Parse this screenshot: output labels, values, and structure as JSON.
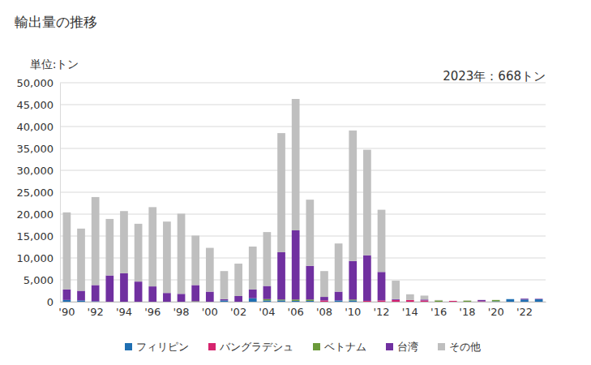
{
  "chart_data": {
    "type": "bar",
    "stacked": true,
    "title": "輸出量の推移",
    "y_label": "単位:トン",
    "annotation": "2023年：668トン",
    "categories": [
      "'90",
      null,
      "'92",
      null,
      "'94",
      null,
      "'96",
      null,
      "'98",
      null,
      "'00",
      null,
      "'02",
      null,
      "'04",
      null,
      "'06",
      null,
      "'08",
      null,
      "'10",
      null,
      "'12",
      null,
      "'14",
      null,
      "'16",
      null,
      "'18",
      null,
      "'20",
      null,
      "'22",
      null
    ],
    "series": [
      {
        "name": "フィリピン",
        "color": "#1f6fb2",
        "values": [
          400,
          300,
          100,
          0,
          0,
          0,
          0,
          0,
          0,
          0,
          0,
          300,
          0,
          800,
          300,
          300,
          200,
          200,
          0,
          300,
          300,
          0,
          0,
          0,
          0,
          0,
          0,
          0,
          0,
          0,
          100,
          600,
          500,
          550
        ]
      },
      {
        "name": "バングラデシュ",
        "color": "#d6246e",
        "values": [
          0,
          0,
          0,
          0,
          0,
          0,
          0,
          0,
          0,
          0,
          0,
          0,
          0,
          0,
          0,
          0,
          0,
          0,
          300,
          0,
          0,
          200,
          300,
          400,
          400,
          300,
          0,
          200,
          0,
          100,
          0,
          0,
          0,
          0
        ]
      },
      {
        "name": "ベトナム",
        "color": "#6b9a3a",
        "values": [
          0,
          0,
          0,
          0,
          0,
          0,
          0,
          0,
          0,
          100,
          0,
          0,
          0,
          0,
          300,
          200,
          300,
          300,
          0,
          0,
          200,
          0,
          0,
          0,
          0,
          0,
          300,
          0,
          250,
          0,
          300,
          0,
          0,
          0
        ]
      },
      {
        "name": "台湾",
        "color": "#7030a0",
        "values": [
          2400,
          2200,
          3700,
          6000,
          6500,
          4600,
          3500,
          2000,
          1800,
          3700,
          2300,
          300,
          1300,
          2000,
          3000,
          10800,
          15800,
          7700,
          800,
          2000,
          8800,
          10400,
          6500,
          200,
          0,
          200,
          0,
          0,
          0,
          300,
          0,
          0,
          200,
          118
        ]
      },
      {
        "name": "その他",
        "color": "#bfbfbf",
        "values": [
          17600,
          14200,
          20100,
          12900,
          14200,
          13200,
          18100,
          16300,
          18300,
          11300,
          10000,
          6400,
          7400,
          9800,
          12300,
          27200,
          30000,
          15100,
          5900,
          11000,
          29800,
          24100,
          14200,
          4200,
          1300,
          900,
          100,
          0,
          50,
          0,
          0,
          0,
          0,
          0
        ]
      }
    ],
    "ylim": [
      0,
      50000
    ],
    "yticks": [
      0,
      {
        "value": 5000,
        "label": "5,000"
      },
      {
        "value": 10000,
        "label": "10,000"
      },
      {
        "value": 15000,
        "label": "15,000"
      },
      {
        "value": 20000,
        "label": "20,000"
      },
      {
        "value": 25000,
        "label": "25,000"
      },
      {
        "value": 30000,
        "label": "30,000"
      },
      {
        "value": 35000,
        "label": "35,000"
      },
      {
        "value": 40000,
        "label": "40,000"
      },
      {
        "value": 45000,
        "label": "45,000"
      },
      {
        "value": 50000,
        "label": "50,000"
      }
    ],
    "grid": true,
    "legend": "bottom"
  }
}
